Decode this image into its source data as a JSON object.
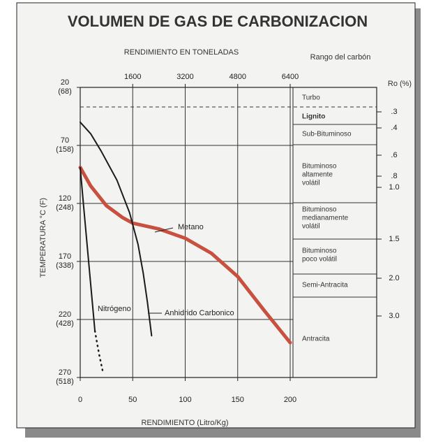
{
  "chart_data": {
    "type": "line",
    "title": "VOLUMEN DE GAS DE CARBONIZACION",
    "x2_axis_label": "RENDIMIENTO EN TONELADAS",
    "rank_axis_label": "Rango del carbón",
    "y_axis_label": "TEMPERATURA °C (F)",
    "x_axis_label": "RENDIMIENTO (Litro/Kg)",
    "y2_axis_label": "Ro (%)",
    "xlim": [
      0,
      200
    ],
    "xticks": [
      0,
      50,
      100,
      150,
      200
    ],
    "x2lim": [
      0,
      6400
    ],
    "x2ticks": [
      1600,
      3200,
      4800,
      6400
    ],
    "ylim": [
      20,
      270
    ],
    "yticks": [
      20,
      70,
      120,
      170,
      220,
      270
    ],
    "yticks_f": [
      "(68)",
      "(158)",
      "(248)",
      "(338)",
      "(428)",
      "(518)"
    ],
    "y_inverted": true,
    "grid": true,
    "ro_ticks": [
      {
        "value": 0.3,
        "label": ".3"
      },
      {
        "value": 0.4,
        "label": ".4"
      },
      {
        "value": 0.6,
        "label": ".6"
      },
      {
        "value": 0.8,
        "label": ".8"
      },
      {
        "value": 1.0,
        "label": "1.0"
      },
      {
        "value": 1.5,
        "label": "1.5"
      },
      2.0,
      3.0
    ],
    "ro_tick_labels": [
      "2.0",
      "3.0"
    ],
    "coal_ranks": [
      [
        "Turbo"
      ],
      [
        "Lignito"
      ],
      [
        "Sub-Bituminoso"
      ],
      [
        "Bituminoso",
        "altamente",
        "volátil"
      ],
      [
        "Bituminoso",
        "medianamente",
        "volátil"
      ],
      [
        "Bituminoso",
        "poco volátil"
      ],
      [
        "Semi-Antracita"
      ],
      [
        "Antracita"
      ]
    ],
    "series": [
      {
        "name": "Metano",
        "color": "#c8503e",
        "x": [
          0,
          10,
          25,
          40,
          50,
          75,
          100,
          125,
          150,
          175,
          200
        ],
        "values": [
          89,
          105,
          122,
          132,
          137,
          142,
          150,
          163,
          183,
          212,
          240
        ]
      },
      {
        "name": "Anhidrido Carbonico",
        "color": "#1a1a1a",
        "x": [
          0,
          10,
          20,
          35,
          47,
          55,
          60,
          64,
          68
        ],
        "values": [
          50,
          60,
          75,
          100,
          128,
          155,
          180,
          205,
          234
        ]
      },
      {
        "name": "Nitrógeno",
        "color": "#1a1a1a",
        "x": [
          0,
          3,
          6,
          9,
          12,
          14
        ],
        "values": [
          89,
          120,
          150,
          180,
          210,
          230
        ],
        "dotted_x": [
          14,
          18,
          22
        ],
        "dotted_values": [
          230,
          250,
          267
        ]
      }
    ]
  }
}
